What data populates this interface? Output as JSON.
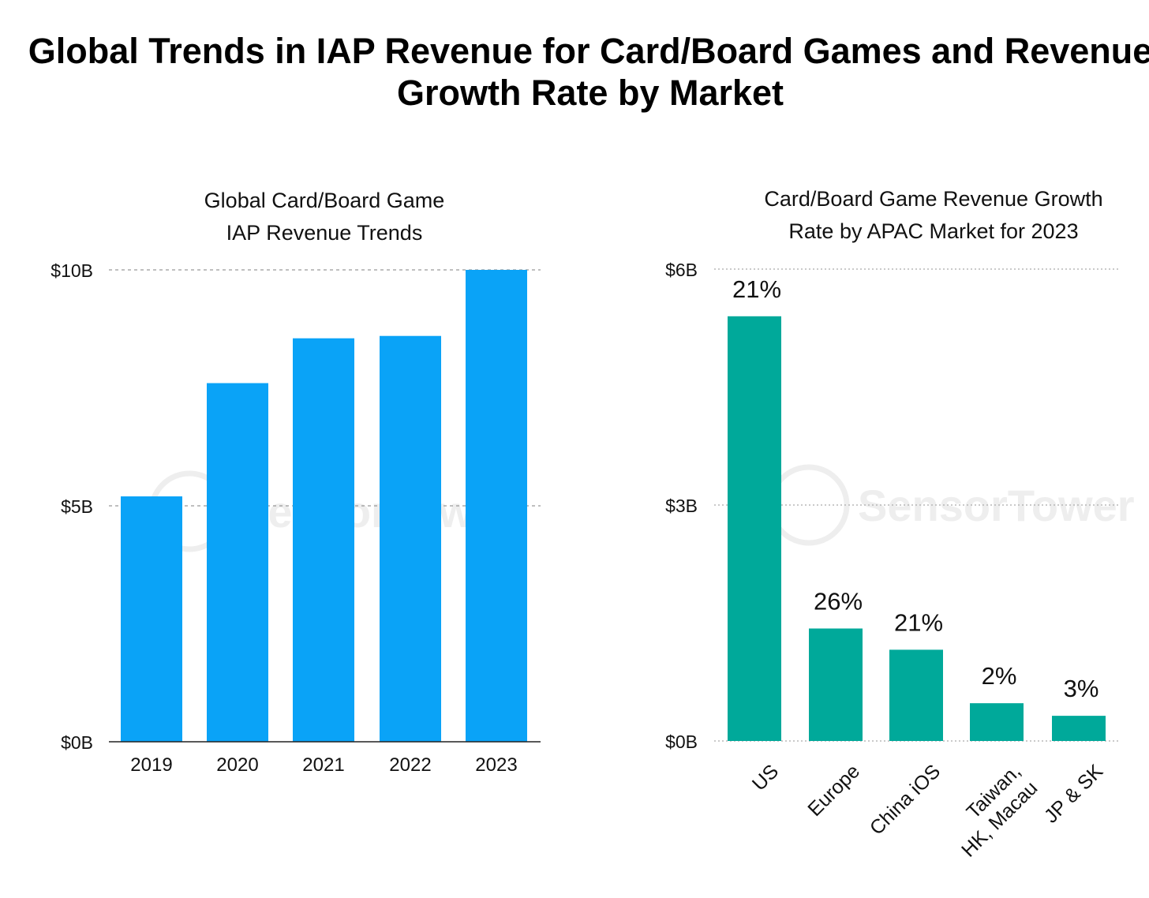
{
  "title": "Global Trends in IAP Revenue for Card/Board Games and Revenue Growth Rate by Market",
  "watermark": "SensorTower",
  "chart_data": [
    {
      "type": "bar",
      "title": "Global Card/Board Game IAP Revenue Trends",
      "title_lines": [
        "Global Card/Board Game",
        "IAP Revenue Trends"
      ],
      "categories": [
        "2019",
        "2020",
        "2021",
        "2022",
        "2023"
      ],
      "values": [
        5.2,
        7.6,
        8.55,
        8.6,
        10.0
      ],
      "unit": "$B",
      "ylim": [
        0,
        10
      ],
      "yticks": [
        0,
        5,
        10
      ],
      "ytick_labels": [
        "$0B",
        "$5B",
        "$10B"
      ],
      "grid": true,
      "color": "#0aa3f7"
    },
    {
      "type": "bar",
      "title": "Card/Board Game Revenue Growth Rate by APAC Market for 2023",
      "title_lines": [
        "Card/Board Game Revenue Growth",
        "Rate by APAC Market for 2023"
      ],
      "categories": [
        "US",
        "Europe",
        "China iOS",
        "Taiwan, HK, Macau",
        "JP & SK"
      ],
      "category_lines": [
        [
          "US"
        ],
        [
          "Europe"
        ],
        [
          "China iOS"
        ],
        [
          "Taiwan,",
          "HK, Macau"
        ],
        [
          "JP & SK"
        ]
      ],
      "values": [
        5.4,
        1.43,
        1.16,
        0.48,
        0.32
      ],
      "data_labels": [
        "21%",
        "26%",
        "21%",
        "2%",
        "3%"
      ],
      "unit": "$B",
      "ylim": [
        0,
        6
      ],
      "yticks": [
        0,
        3,
        6
      ],
      "ytick_labels": [
        "$0B",
        "$3B",
        "$6B"
      ],
      "grid": true,
      "color": "#00a99a"
    }
  ]
}
